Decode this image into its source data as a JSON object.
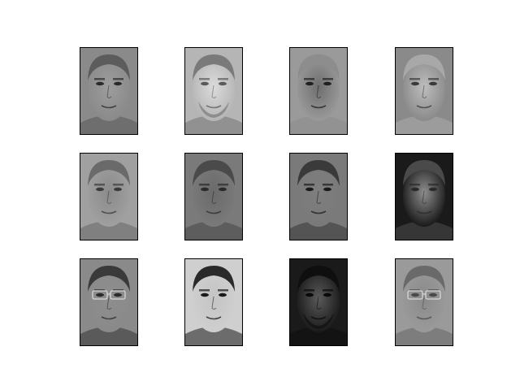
{
  "figure": {
    "background": "#ffffff",
    "frame_color": "#000000",
    "grid": {
      "rows": 3,
      "cols": 4
    },
    "colormap": "gray",
    "panels": [
      {
        "id": "face-1",
        "tone": {
          "bg": "#8a8a8a",
          "face": "#9d9d9d",
          "hair": "#5c5c5c",
          "eyes": "#2a2a2a"
        },
        "glasses": false,
        "beard": false
      },
      {
        "id": "face-2",
        "tone": {
          "bg": "#b5b5b5",
          "face": "#dcdcdc",
          "hair": "#7a7a7a",
          "eyes": "#5a5a5a"
        },
        "glasses": false,
        "beard": true
      },
      {
        "id": "face-3",
        "tone": {
          "bg": "#9a9a9a",
          "face": "#6e6e6e",
          "hair": "#8d8d8d",
          "eyes": "#1f1f1f"
        },
        "glasses": false,
        "beard": false
      },
      {
        "id": "face-4",
        "tone": {
          "bg": "#8a8a8a",
          "face": "#bdbdbd",
          "hair": "#a8a8a8",
          "eyes": "#3a3a3a"
        },
        "glasses": false,
        "beard": false
      },
      {
        "id": "face-5",
        "tone": {
          "bg": "#a0a0a0",
          "face": "#8a8a8a",
          "hair": "#6a6a6a",
          "eyes": "#3a3a3a"
        },
        "glasses": false,
        "beard": false
      },
      {
        "id": "face-6",
        "tone": {
          "bg": "#7a7a7a",
          "face": "#6a6a6a",
          "hair": "#4a4a4a",
          "eyes": "#2a2a2a"
        },
        "glasses": false,
        "beard": false
      },
      {
        "id": "face-7",
        "tone": {
          "bg": "#7a7a7a",
          "face": "#7e7e7e",
          "hair": "#3a3a3a",
          "eyes": "#1a1a1a"
        },
        "glasses": false,
        "beard": false
      },
      {
        "id": "face-8",
        "tone": {
          "bg": "#1a1a1a",
          "face": "#8e8e8e",
          "hair": "#4a4a4a",
          "eyes": "#2a2a2a"
        },
        "glasses": false,
        "beard": false
      },
      {
        "id": "face-9",
        "tone": {
          "bg": "#8a8a8a",
          "face": "#8e8e8e",
          "hair": "#3a3a3a",
          "eyes": "#2a2a2a"
        },
        "glasses": true,
        "beard": false
      },
      {
        "id": "face-10",
        "tone": {
          "bg": "#cfcfcf",
          "face": "#c4c4c4",
          "hair": "#2a2a2a",
          "eyes": "#1a1a1a"
        },
        "glasses": false,
        "beard": false
      },
      {
        "id": "face-11",
        "tone": {
          "bg": "#1a1a1a",
          "face": "#5a5a5a",
          "hair": "#0f0f0f",
          "eyes": "#0a0a0a"
        },
        "glasses": false,
        "beard": true
      },
      {
        "id": "face-12",
        "tone": {
          "bg": "#9a9a9a",
          "face": "#8a8a8a",
          "hair": "#6a6a6a",
          "eyes": "#4a4a4a"
        },
        "glasses": true,
        "beard": false
      }
    ]
  }
}
